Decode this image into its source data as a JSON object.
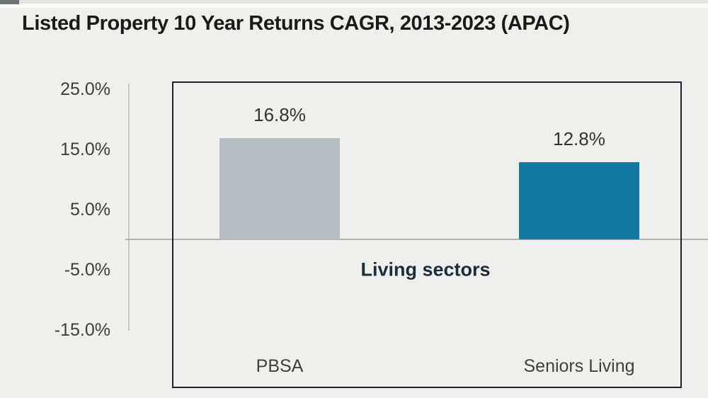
{
  "header": {
    "title": "Listed Property 10 Year Returns CAGR, 2013-2023 (APAC)"
  },
  "chart_data": {
    "type": "bar",
    "title": "Listed Property 10 Year Returns CAGR, 2013-2023 (APAC)",
    "categories": [
      "PBSA",
      "Seniors Living"
    ],
    "values": [
      16.8,
      12.8
    ],
    "value_labels": [
      "16.8%",
      "12.8%"
    ],
    "annotation": "Living sectors",
    "y_ticks": [
      "25.0%",
      "15.0%",
      "5.0%",
      "-5.0%",
      "-15.0%"
    ],
    "y_tick_values": [
      25,
      15,
      5,
      -5,
      -15
    ],
    "ylim": [
      -25,
      26
    ],
    "xlabel": "",
    "ylabel": "",
    "grid": "zero-line-only",
    "legend": "none",
    "bar_colors": [
      "#b7bec2",
      "#0f7aa3"
    ]
  },
  "colors": {
    "background": "#efefed",
    "plot_border": "#1d232e",
    "zero_line": "#b1b1af",
    "axis_line": "#c7c7c5",
    "bar_gray": "#b7bec2",
    "bar_teal": "#0f7aa3",
    "title_text": "#1a1a1a",
    "annotation_text": "#1f2b38"
  }
}
